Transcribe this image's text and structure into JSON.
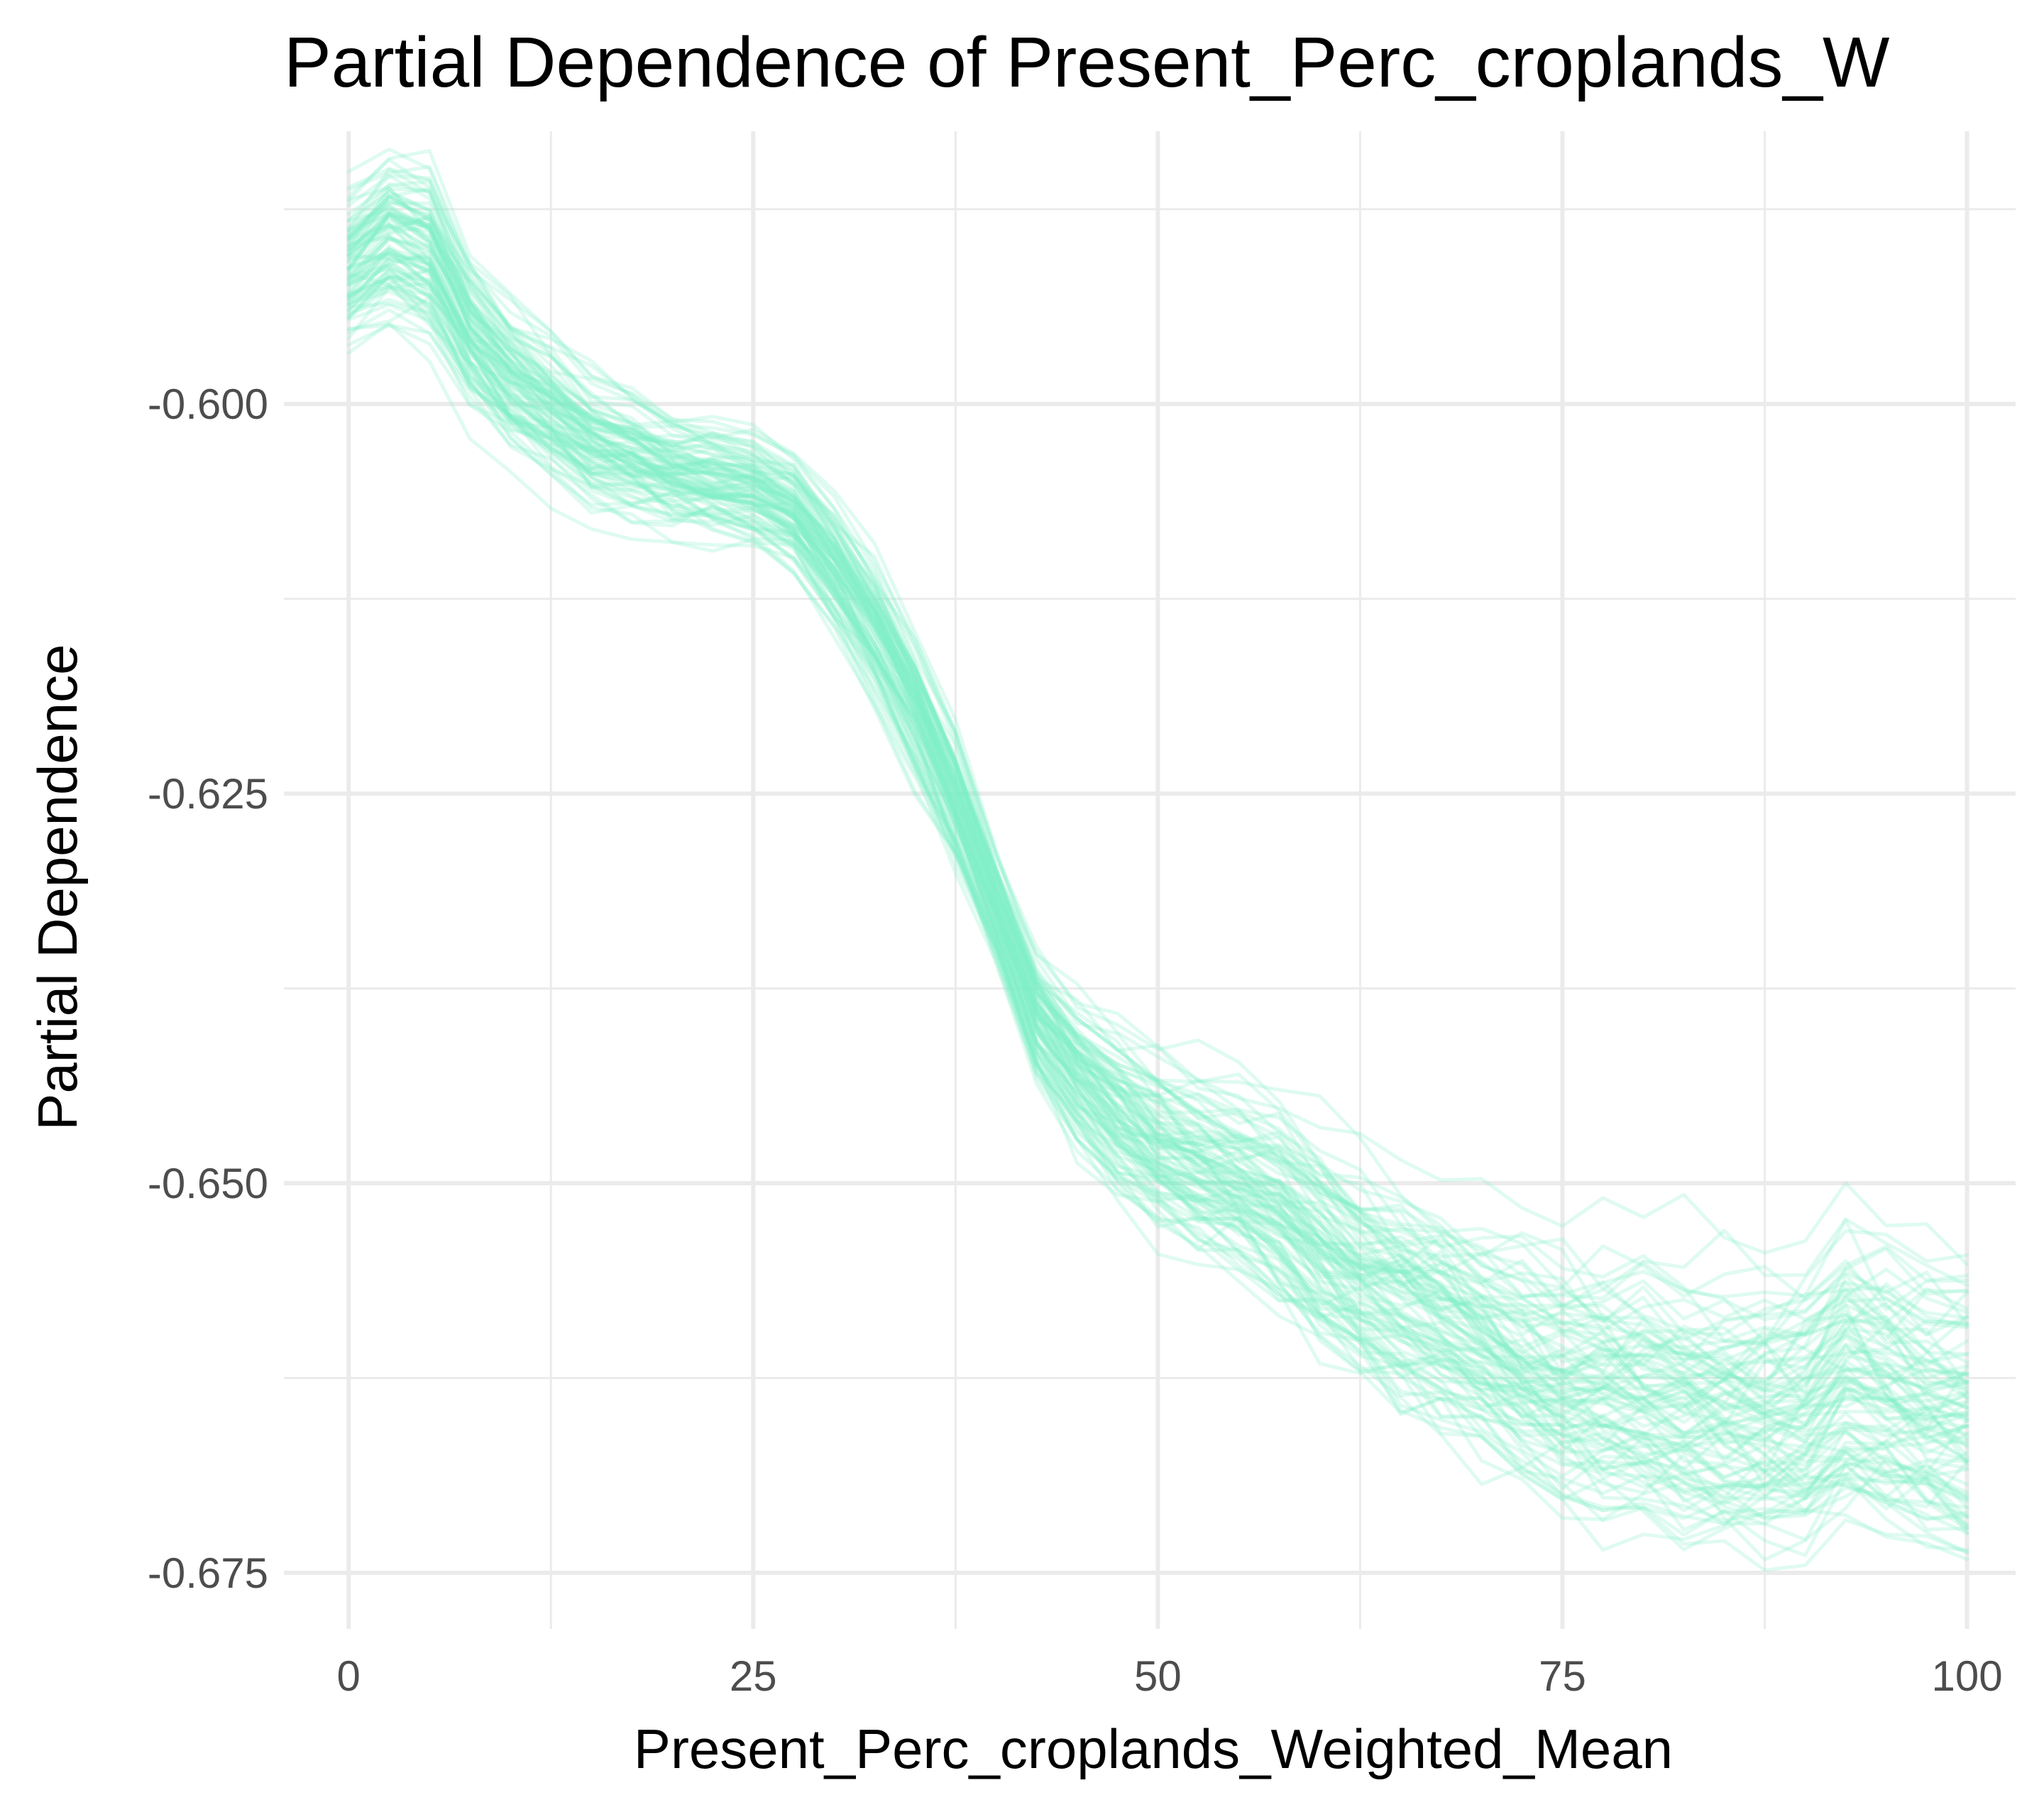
{
  "chart_data": {
    "type": "line",
    "title": "Partial Dependence of Present_Perc_croplands_W",
    "xlabel": "Present_Perc_croplands_Weighted_Mean",
    "ylabel": "Partial Dependence",
    "xlim": [
      -4,
      103
    ],
    "ylim": [
      -0.6786,
      -0.5825
    ],
    "x_ticks": [
      0,
      25,
      50,
      75,
      100
    ],
    "x_tick_labels": [
      "0",
      "25",
      "50",
      "75",
      "100"
    ],
    "y_ticks": [
      -0.6,
      -0.625,
      -0.65,
      -0.675
    ],
    "y_tick_labels": [
      "-0.600",
      "-0.625",
      "-0.650",
      "-0.675"
    ],
    "grid": true,
    "legend": "none",
    "line_color": "#7fefc8",
    "line_opacity": 0.25,
    "x": [
      0,
      2.5,
      5,
      7.5,
      10,
      12.5,
      15,
      17.5,
      20,
      22.5,
      25,
      27.5,
      30,
      32.5,
      35,
      37.5,
      40,
      42.5,
      45,
      47.5,
      50,
      52.5,
      55,
      57.5,
      60,
      62.5,
      65,
      67.5,
      70,
      72.5,
      75,
      77.5,
      80,
      82.5,
      85,
      87.5,
      90,
      92.5,
      95,
      97.5,
      100
    ],
    "centre_series": [
      -0.5915,
      -0.5895,
      -0.5905,
      -0.5955,
      -0.5985,
      -0.6005,
      -0.6025,
      -0.6035,
      -0.6045,
      -0.605,
      -0.6055,
      -0.607,
      -0.6105,
      -0.6145,
      -0.6195,
      -0.6255,
      -0.6325,
      -0.6395,
      -0.643,
      -0.6455,
      -0.6475,
      -0.649,
      -0.65,
      -0.6515,
      -0.654,
      -0.656,
      -0.6575,
      -0.659,
      -0.6605,
      -0.662,
      -0.663,
      -0.6635,
      -0.664,
      -0.6645,
      -0.665,
      -0.6655,
      -0.665,
      -0.6625,
      -0.6635,
      -0.6645,
      -0.665
    ],
    "spread": [
      0.0045,
      0.005,
      0.005,
      0.0045,
      0.0042,
      0.004,
      0.004,
      0.0038,
      0.0035,
      0.0035,
      0.0035,
      0.0035,
      0.0038,
      0.004,
      0.0042,
      0.0042,
      0.0035,
      0.004,
      0.0045,
      0.005,
      0.0052,
      0.0055,
      0.0055,
      0.0058,
      0.006,
      0.0062,
      0.0065,
      0.0068,
      0.007,
      0.0072,
      0.0075,
      0.0078,
      0.0078,
      0.0078,
      0.0078,
      0.0078,
      0.008,
      0.0085,
      0.0085,
      0.0085,
      0.0085
    ],
    "n_curves": 100
  }
}
